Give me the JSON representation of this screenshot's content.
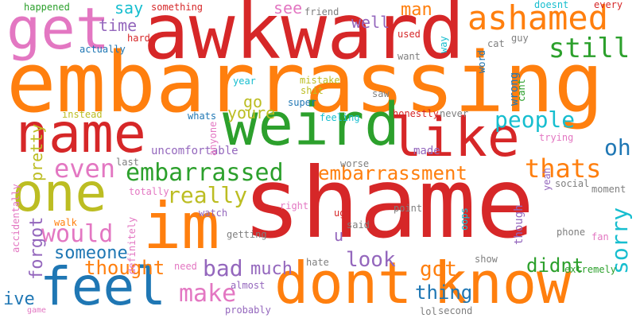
{
  "word_cloud": {
    "words": [
      {
        "text": "shame",
        "color": "#d62728",
        "orientation": "horizontal"
      },
      {
        "text": "embarrassing",
        "color": "#ff7f0e",
        "orientation": "horizontal"
      },
      {
        "text": "awkward",
        "color": "#d62728",
        "orientation": "horizontal"
      },
      {
        "text": "get",
        "color": "#e377c2",
        "orientation": "horizontal"
      },
      {
        "text": "name",
        "color": "#d62728",
        "orientation": "horizontal"
      },
      {
        "text": "weird",
        "color": "#2ca02c",
        "orientation": "horizontal"
      },
      {
        "text": "like",
        "color": "#d62728",
        "orientation": "horizontal"
      },
      {
        "text": "im",
        "color": "#ff7f0e",
        "orientation": "horizontal"
      },
      {
        "text": "one",
        "color": "#bcbd22",
        "orientation": "horizontal"
      },
      {
        "text": "feel",
        "color": "#1f77b4",
        "orientation": "horizontal"
      },
      {
        "text": "dont",
        "color": "#ff7f0e",
        "orientation": "horizontal"
      },
      {
        "text": "know",
        "color": "#ff7f0e",
        "orientation": "horizontal"
      },
      {
        "text": "ashamed",
        "color": "#ff7f0e",
        "orientation": "horizontal"
      },
      {
        "text": "still",
        "color": "#2ca02c",
        "orientation": "horizontal"
      },
      {
        "text": "embarrassed",
        "color": "#2ca02c",
        "orientation": "horizontal"
      },
      {
        "text": "embarrassment",
        "color": "#ff7f0e",
        "orientation": "horizontal"
      },
      {
        "text": "people",
        "color": "#17becf",
        "orientation": "horizontal"
      },
      {
        "text": "thats",
        "color": "#ff7f0e",
        "orientation": "horizontal"
      },
      {
        "text": "oh",
        "color": "#1f77b4",
        "orientation": "horizontal"
      },
      {
        "text": "sorry",
        "color": "#17becf",
        "orientation": "vertical"
      },
      {
        "text": "even",
        "color": "#e377c2",
        "orientation": "horizontal"
      },
      {
        "text": "would",
        "color": "#e377c2",
        "orientation": "horizontal"
      },
      {
        "text": "really",
        "color": "#bcbd22",
        "orientation": "horizontal"
      },
      {
        "text": "make",
        "color": "#e377c2",
        "orientation": "horizontal"
      },
      {
        "text": "thought",
        "color": "#ff7f0e",
        "orientation": "horizontal"
      },
      {
        "text": "someone",
        "color": "#1f77b4",
        "orientation": "horizontal"
      },
      {
        "text": "bad",
        "color": "#9467bd",
        "orientation": "horizontal"
      },
      {
        "text": "much",
        "color": "#9467bd",
        "orientation": "horizontal"
      },
      {
        "text": "look",
        "color": "#9467bd",
        "orientation": "horizontal"
      },
      {
        "text": "got",
        "color": "#ff7f0e",
        "orientation": "horizontal"
      },
      {
        "text": "thing",
        "color": "#1f77b4",
        "orientation": "horizontal"
      },
      {
        "text": "didnt",
        "color": "#2ca02c",
        "orientation": "horizontal"
      },
      {
        "text": "forgot",
        "color": "#9467bd",
        "orientation": "vertical"
      },
      {
        "text": "ive",
        "color": "#1f77b4",
        "orientation": "horizontal"
      },
      {
        "text": "pretty",
        "color": "#bcbd22",
        "orientation": "vertical"
      },
      {
        "text": "say",
        "color": "#17becf",
        "orientation": "horizontal"
      },
      {
        "text": "time",
        "color": "#9467bd",
        "orientation": "horizontal"
      },
      {
        "text": "see",
        "color": "#e377c2",
        "orientation": "horizontal"
      },
      {
        "text": "well",
        "color": "#9467bd",
        "orientation": "horizontal"
      },
      {
        "text": "man",
        "color": "#ff7f0e",
        "orientation": "horizontal"
      },
      {
        "text": "go",
        "color": "#bcbd22",
        "orientation": "horizontal"
      },
      {
        "text": "youre",
        "color": "#bcbd22",
        "orientation": "horizontal"
      },
      {
        "text": "uncomfortable",
        "color": "#9467bd",
        "orientation": "horizontal"
      },
      {
        "text": "u",
        "color": "#9467bd",
        "orientation": "horizontal"
      },
      {
        "text": "made",
        "color": "#9467bd",
        "orientation": "horizontal"
      },
      {
        "text": "though",
        "color": "#9467bd",
        "orientation": "vertical"
      },
      {
        "text": "extremely",
        "color": "#2ca02c",
        "orientation": "horizontal"
      },
      {
        "text": "happened",
        "color": "#2ca02c",
        "orientation": "horizontal"
      },
      {
        "text": "something",
        "color": "#d62728",
        "orientation": "horizontal"
      },
      {
        "text": "friend",
        "color": "#7f7f7f",
        "orientation": "horizontal"
      },
      {
        "text": "doesnt",
        "color": "#17becf",
        "orientation": "horizontal"
      },
      {
        "text": "every",
        "color": "#d62728",
        "orientation": "horizontal"
      },
      {
        "text": "hard",
        "color": "#d62728",
        "orientation": "horizontal"
      },
      {
        "text": "used",
        "color": "#d62728",
        "orientation": "horizontal"
      },
      {
        "text": "way",
        "color": "#17becf",
        "orientation": "vertical"
      },
      {
        "text": "cat",
        "color": "#7f7f7f",
        "orientation": "horizontal"
      },
      {
        "text": "guy",
        "color": "#7f7f7f",
        "orientation": "horizontal"
      },
      {
        "text": "actually",
        "color": "#1f77b4",
        "orientation": "horizontal"
      },
      {
        "text": "want",
        "color": "#7f7f7f",
        "orientation": "horizontal"
      },
      {
        "text": "word",
        "color": "#1f77b4",
        "orientation": "vertical"
      },
      {
        "text": "wrong",
        "color": "#1f77b4",
        "orientation": "vertical"
      },
      {
        "text": "cant",
        "color": "#2ca02c",
        "orientation": "vertical"
      },
      {
        "text": "year",
        "color": "#17becf",
        "orientation": "horizontal"
      },
      {
        "text": "mistake",
        "color": "#bcbd22",
        "orientation": "horizontal"
      },
      {
        "text": "shit",
        "color": "#bcbd22",
        "orientation": "horizontal"
      },
      {
        "text": "saw",
        "color": "#7f7f7f",
        "orientation": "horizontal"
      },
      {
        "text": "super",
        "color": "#1f77b4",
        "orientation": "horizontal"
      },
      {
        "text": "instead",
        "color": "#bcbd22",
        "orientation": "horizontal"
      },
      {
        "text": "whats",
        "color": "#1f77b4",
        "orientation": "horizontal"
      },
      {
        "text": "feeling",
        "color": "#17becf",
        "orientation": "horizontal"
      },
      {
        "text": "honestly",
        "color": "#d62728",
        "orientation": "horizontal"
      },
      {
        "text": "never",
        "color": "#7f7f7f",
        "orientation": "horizontal"
      },
      {
        "text": "anyone",
        "color": "#e377c2",
        "orientation": "vertical"
      },
      {
        "text": "last",
        "color": "#7f7f7f",
        "orientation": "horizontal"
      },
      {
        "text": "worse",
        "color": "#7f7f7f",
        "orientation": "horizontal"
      },
      {
        "text": "trying",
        "color": "#e377c2",
        "orientation": "horizontal"
      },
      {
        "text": "yeah",
        "color": "#9467bd",
        "orientation": "vertical"
      },
      {
        "text": "social",
        "color": "#7f7f7f",
        "orientation": "horizontal"
      },
      {
        "text": "moment",
        "color": "#7f7f7f",
        "orientation": "horizontal"
      },
      {
        "text": "totally",
        "color": "#e377c2",
        "orientation": "horizontal"
      },
      {
        "text": "watch",
        "color": "#9467bd",
        "orientation": "horizontal"
      },
      {
        "text": "right",
        "color": "#e377c2",
        "orientation": "horizontal"
      },
      {
        "text": "ugh",
        "color": "#d62728",
        "orientation": "horizontal"
      },
      {
        "text": "point",
        "color": "#7f7f7f",
        "orientation": "horizontal"
      },
      {
        "text": "said",
        "color": "#7f7f7f",
        "orientation": "horizontal"
      },
      {
        "text": "oops",
        "color": "#17becf",
        "orientation": "vertical"
      },
      {
        "text": "phone",
        "color": "#7f7f7f",
        "orientation": "horizontal"
      },
      {
        "text": "fan",
        "color": "#e377c2",
        "orientation": "horizontal"
      },
      {
        "text": "accidentally",
        "color": "#e377c2",
        "orientation": "vertical"
      },
      {
        "text": "walk",
        "color": "#ff7f0e",
        "orientation": "horizontal"
      },
      {
        "text": "definitely",
        "color": "#e377c2",
        "orientation": "vertical"
      },
      {
        "text": "getting",
        "color": "#7f7f7f",
        "orientation": "horizontal"
      },
      {
        "text": "hate",
        "color": "#7f7f7f",
        "orientation": "horizontal"
      },
      {
        "text": "show",
        "color": "#7f7f7f",
        "orientation": "horizontal"
      },
      {
        "text": "need",
        "color": "#e377c2",
        "orientation": "horizontal"
      },
      {
        "text": "almost",
        "color": "#9467bd",
        "orientation": "horizontal"
      },
      {
        "text": "probably",
        "color": "#9467bd",
        "orientation": "horizontal"
      },
      {
        "text": "lol",
        "color": "#7f7f7f",
        "orientation": "horizontal"
      },
      {
        "text": "second",
        "color": "#7f7f7f",
        "orientation": "horizontal"
      },
      {
        "text": "game",
        "color": "#e377c2",
        "orientation": "horizontal"
      }
    ]
  }
}
